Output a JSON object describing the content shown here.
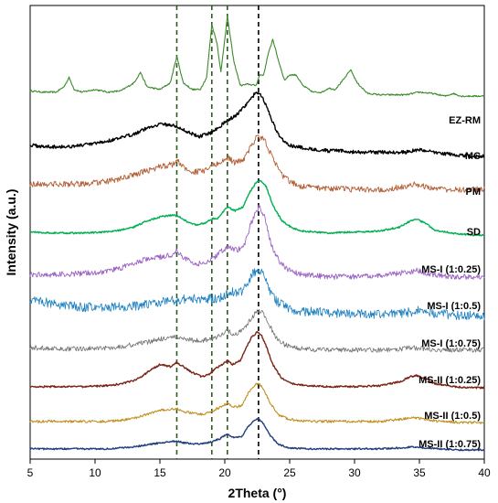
{
  "chart_data": {
    "type": "line",
    "xlabel": "2Theta (°)",
    "ylabel": "Intensity (a.u.)",
    "xlim": [
      5,
      40
    ],
    "xticks": [
      "5",
      "10",
      "15",
      "20",
      "25",
      "30",
      "35",
      "40"
    ],
    "yticks": [],
    "reference_lines": {
      "x": [
        16.3,
        19.0,
        20.2,
        22.6
      ],
      "style": "dashed",
      "colors": [
        "#2f5a1e",
        "#2f5a1e",
        "#2f5a1e",
        "#000000"
      ]
    },
    "series": [
      {
        "name": "EZ-RM",
        "color": "#3c8a2c",
        "linewidth": 1.1,
        "x": [
          5,
          6,
          7,
          7.6,
          8,
          8.4,
          9,
          10,
          11,
          12,
          13,
          13.5,
          14,
          15,
          15.8,
          16.3,
          16.8,
          17.5,
          18.1,
          18.6,
          19.0,
          19.4,
          19.7,
          20.2,
          20.7,
          21.2,
          21.8,
          22.4,
          22.7,
          23.0,
          23.3,
          23.7,
          24.1,
          24.6,
          25.0,
          25.5,
          26.0,
          26.8,
          27.5,
          28.0,
          28.5,
          29.2,
          29.7,
          30.2,
          31.0,
          32,
          33,
          34,
          35,
          36,
          37,
          37.6,
          38.2,
          39,
          40
        ],
        "y": [
          0.06,
          0.05,
          0.05,
          0.09,
          0.16,
          0.07,
          0.05,
          0.07,
          0.05,
          0.06,
          0.12,
          0.2,
          0.09,
          0.07,
          0.12,
          0.32,
          0.12,
          0.07,
          0.07,
          0.16,
          0.56,
          0.42,
          0.2,
          0.62,
          0.28,
          0.1,
          0.11,
          0.1,
          0.18,
          0.18,
          0.32,
          0.45,
          0.3,
          0.14,
          0.18,
          0.18,
          0.1,
          0.05,
          0.05,
          0.08,
          0.07,
          0.15,
          0.22,
          0.12,
          0.04,
          0.03,
          0.03,
          0.03,
          0.05,
          0.04,
          0.02,
          0.04,
          0.02,
          0.02,
          0.02
        ]
      },
      {
        "name": "MC",
        "color": "#000000",
        "linewidth": 1.4,
        "x": [
          5,
          6,
          7,
          8,
          9,
          10,
          11,
          12,
          13,
          14,
          15,
          16,
          17,
          18,
          19,
          20,
          21,
          21.8,
          22.3,
          22.7,
          23.1,
          23.6,
          24.2,
          25,
          26,
          27,
          28,
          29,
          30,
          31,
          32,
          33,
          34,
          35,
          36,
          37,
          38,
          39,
          40
        ],
        "y": [
          0.06,
          0.05,
          0.05,
          0.05,
          0.06,
          0.07,
          0.09,
          0.11,
          0.14,
          0.18,
          0.21,
          0.2,
          0.16,
          0.12,
          0.15,
          0.22,
          0.28,
          0.36,
          0.42,
          0.43,
          0.36,
          0.24,
          0.12,
          0.06,
          0.04,
          0.03,
          0.02,
          0.02,
          0.01,
          0.01,
          0.01,
          0.01,
          0.01,
          0.03,
          0.01,
          0.0,
          -0.01,
          -0.02,
          -0.02
        ]
      },
      {
        "name": "PM",
        "color": "#b35e36",
        "linewidth": 0.9,
        "x": [
          5,
          7,
          9,
          11,
          12,
          13,
          14,
          15,
          16,
          16.3,
          16.6,
          17.5,
          18.5,
          19,
          19.6,
          20.2,
          20.8,
          21.5,
          22.0,
          22.5,
          23.0,
          23.6,
          24.3,
          25,
          26,
          28,
          30,
          32,
          34,
          34.8,
          35.5,
          37,
          38.5,
          40
        ],
        "y": [
          0.06,
          0.06,
          0.06,
          0.08,
          0.1,
          0.13,
          0.16,
          0.19,
          0.21,
          0.25,
          0.2,
          0.15,
          0.16,
          0.2,
          0.22,
          0.26,
          0.22,
          0.25,
          0.34,
          0.42,
          0.4,
          0.28,
          0.14,
          0.08,
          0.04,
          0.03,
          0.02,
          0.02,
          0.04,
          0.06,
          0.04,
          0.02,
          0.02,
          0.02
        ]
      },
      {
        "name": "SD",
        "color": "#00b050",
        "linewidth": 1.4,
        "x": [
          5,
          7,
          9,
          11,
          12,
          13,
          14,
          15,
          16,
          16.5,
          17,
          17.8,
          18.5,
          19,
          19.5,
          20.2,
          20.8,
          21.4,
          21.9,
          22.4,
          22.8,
          23.2,
          23.7,
          24.4,
          25.2,
          26,
          28,
          30,
          32,
          33.5,
          34.3,
          34.8,
          35.4,
          36.2,
          37.5,
          39,
          40
        ],
        "y": [
          0.03,
          0.02,
          0.02,
          0.03,
          0.05,
          0.08,
          0.14,
          0.18,
          0.2,
          0.18,
          0.14,
          0.1,
          0.12,
          0.16,
          0.17,
          0.28,
          0.24,
          0.28,
          0.42,
          0.52,
          0.54,
          0.48,
          0.3,
          0.14,
          0.07,
          0.04,
          0.02,
          0.03,
          0.04,
          0.08,
          0.14,
          0.16,
          0.12,
          0.05,
          0.02,
          0.0,
          0.0
        ]
      },
      {
        "name": "MS-I (1:0.25)",
        "color": "#9a62c4",
        "linewidth": 0.9,
        "x": [
          5,
          7,
          9,
          11,
          12,
          13,
          14,
          15,
          16,
          16.3,
          16.8,
          17.6,
          18.5,
          19.2,
          19.8,
          20.3,
          20.9,
          21.5,
          22.0,
          22.4,
          22.7,
          23.1,
          23.6,
          24.3,
          25.1,
          26,
          28,
          30,
          32,
          34,
          34.8,
          35.6,
          37,
          38.5,
          40
        ],
        "y": [
          0.04,
          0.04,
          0.05,
          0.07,
          0.1,
          0.14,
          0.18,
          0.2,
          0.22,
          0.26,
          0.2,
          0.14,
          0.14,
          0.2,
          0.26,
          0.3,
          0.26,
          0.3,
          0.5,
          0.62,
          0.66,
          0.55,
          0.3,
          0.14,
          0.07,
          0.04,
          0.02,
          0.02,
          0.03,
          0.06,
          0.08,
          0.05,
          0.02,
          0.02,
          0.02
        ]
      },
      {
        "name": "MS-I (1:0.5)",
        "color": "#1a7fc0",
        "linewidth": 0.8,
        "x": [
          5,
          6,
          7,
          8,
          9,
          10,
          11,
          12,
          13,
          14,
          15,
          16,
          17,
          18,
          19,
          20,
          20.5,
          21,
          21.6,
          22.1,
          22.5,
          22.9,
          23.4,
          24,
          25,
          26,
          28,
          30,
          32,
          34,
          35,
          36,
          38,
          40
        ],
        "y": [
          0.14,
          0.12,
          0.1,
          0.09,
          0.08,
          0.08,
          0.08,
          0.08,
          0.09,
          0.1,
          0.12,
          0.13,
          0.14,
          0.14,
          0.14,
          0.16,
          0.2,
          0.18,
          0.22,
          0.32,
          0.36,
          0.32,
          0.22,
          0.12,
          0.07,
          0.05,
          0.04,
          0.03,
          0.03,
          0.04,
          0.06,
          0.04,
          0.02,
          0.02
        ]
      },
      {
        "name": "MS-I (1:0.75)",
        "color": "#707070",
        "linewidth": 0.8,
        "x": [
          5,
          7,
          9,
          11,
          12,
          13,
          14,
          15,
          16,
          16.4,
          17,
          18,
          19,
          19.6,
          20.2,
          20.8,
          21.4,
          22.0,
          22.5,
          22.9,
          23.3,
          23.9,
          24.6,
          25.5,
          27,
          29,
          31,
          33,
          34.5,
          35.5,
          37,
          38.5,
          40
        ],
        "y": [
          0.04,
          0.03,
          0.03,
          0.04,
          0.05,
          0.07,
          0.09,
          0.12,
          0.13,
          0.14,
          0.12,
          0.1,
          0.12,
          0.15,
          0.19,
          0.16,
          0.2,
          0.3,
          0.38,
          0.36,
          0.28,
          0.14,
          0.07,
          0.04,
          0.02,
          0.02,
          0.02,
          0.02,
          0.04,
          0.03,
          0.02,
          0.02,
          0.02
        ]
      },
      {
        "name": "MS-II (1:0.25)",
        "color": "#7a2416",
        "linewidth": 1.4,
        "x": [
          5,
          7,
          9,
          11,
          12,
          13,
          13.6,
          14.2,
          15,
          15.8,
          16.3,
          16.8,
          17.5,
          18.2,
          18.8,
          19.3,
          19.8,
          20.2,
          20.6,
          21.2,
          21.7,
          22.1,
          22.5,
          22.8,
          23.2,
          23.7,
          24.4,
          25.2,
          26.5,
          28,
          30,
          32,
          33.5,
          34.3,
          34.8,
          35.4,
          36.2,
          37.5,
          39,
          40
        ],
        "y": [
          0.02,
          0.02,
          0.02,
          0.03,
          0.05,
          0.08,
          0.12,
          0.18,
          0.24,
          0.22,
          0.26,
          0.22,
          0.16,
          0.12,
          0.14,
          0.2,
          0.24,
          0.28,
          0.24,
          0.28,
          0.42,
          0.52,
          0.56,
          0.54,
          0.42,
          0.24,
          0.1,
          0.05,
          0.03,
          0.02,
          0.02,
          0.03,
          0.07,
          0.12,
          0.13,
          0.1,
          0.05,
          0.02,
          0.01,
          0.01
        ]
      },
      {
        "name": "MS-II (1:0.5)",
        "color": "#c09020",
        "linewidth": 1.1,
        "x": [
          5,
          7,
          9,
          11,
          12,
          13,
          14,
          15,
          15.8,
          16.3,
          16.8,
          17.5,
          18.3,
          19,
          19.6,
          20.2,
          20.7,
          21.3,
          21.8,
          22.3,
          22.6,
          23.0,
          23.5,
          24.2,
          25,
          26.5,
          28,
          30,
          32,
          33.5,
          34.5,
          35.5,
          36.5,
          38,
          40
        ],
        "y": [
          0.02,
          0.02,
          0.02,
          0.02,
          0.03,
          0.05,
          0.09,
          0.13,
          0.14,
          0.15,
          0.12,
          0.1,
          0.09,
          0.12,
          0.16,
          0.2,
          0.16,
          0.18,
          0.3,
          0.38,
          0.4,
          0.34,
          0.2,
          0.08,
          0.04,
          0.02,
          0.02,
          0.02,
          0.02,
          0.04,
          0.06,
          0.04,
          0.02,
          0.01,
          0.01
        ]
      },
      {
        "name": "MS-II (1:0.75)",
        "color": "#1f3f7a",
        "linewidth": 1.4,
        "x": [
          5,
          7,
          9,
          11,
          12,
          13,
          14,
          15,
          15.8,
          16.3,
          16.8,
          17.5,
          18.3,
          19,
          19.6,
          20.2,
          20.7,
          21.3,
          21.8,
          22.3,
          22.6,
          23.0,
          23.5,
          24.2,
          25,
          26.5,
          28,
          30,
          32,
          33.5,
          34.5,
          35.5,
          36.5,
          38,
          40
        ],
        "y": [
          0.02,
          0.02,
          0.02,
          0.02,
          0.03,
          0.04,
          0.06,
          0.08,
          0.09,
          0.1,
          0.08,
          0.07,
          0.07,
          0.09,
          0.12,
          0.17,
          0.13,
          0.14,
          0.24,
          0.31,
          0.32,
          0.27,
          0.15,
          0.06,
          0.03,
          0.02,
          0.02,
          0.02,
          0.02,
          0.03,
          0.04,
          0.03,
          0.02,
          0.01,
          0.01
        ]
      }
    ]
  }
}
